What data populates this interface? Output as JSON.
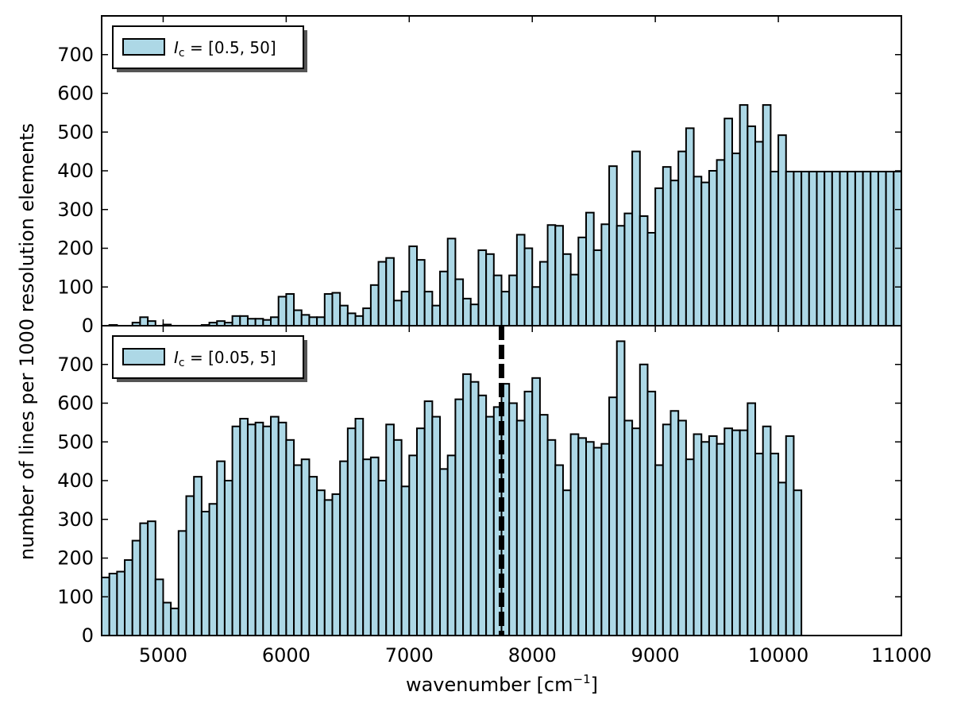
{
  "figure": {
    "xlabel": "wavenumber [cm",
    "xlabel_sup": "−1",
    "xlabel_tail": "]",
    "ylabel": "number of lines per 1000 resolution elements"
  },
  "colors": {
    "bar_fill": "#add8e6",
    "bar_edge": "#000000",
    "marker": "#000000"
  },
  "marker_line": {
    "x": 7750,
    "style": "dashed",
    "panel": "bottom"
  },
  "chart_data": [
    {
      "type": "bar",
      "panel": "top",
      "legend": {
        "symbol": "I",
        "subscript": "c",
        "text": " = [0.5, 50]",
        "placement": "upper-left"
      },
      "series": [
        {
          "name": "I_c = [0.5, 50]"
        }
      ],
      "bin_start": 4500,
      "bin_width": 62.5,
      "xlim": [
        4500,
        11000
      ],
      "ylim": [
        0,
        800
      ],
      "xticks": [
        5000,
        6000,
        7000,
        8000,
        9000,
        10000,
        11000
      ],
      "yticks": [
        0,
        100,
        200,
        300,
        400,
        500,
        600,
        700
      ],
      "values": [
        0,
        2,
        0,
        0,
        8,
        22,
        12,
        0,
        3,
        0,
        0,
        0,
        0,
        2,
        8,
        12,
        8,
        25,
        25,
        18,
        18,
        15,
        22,
        75,
        82,
        40,
        28,
        22,
        22,
        82,
        85,
        52,
        32,
        25,
        45,
        105,
        165,
        175,
        65,
        88,
        205,
        170,
        88,
        52,
        140,
        225,
        120,
        70,
        55,
        195,
        185,
        130,
        88,
        130,
        235,
        200,
        100,
        165,
        260,
        258,
        185,
        132,
        228,
        292,
        195,
        262,
        412,
        258,
        290,
        450,
        283,
        240,
        355,
        410,
        375,
        450,
        510,
        385,
        370,
        400,
        428,
        535,
        445,
        570,
        515,
        475,
        570,
        398,
        492,
        398,
        398,
        398,
        398,
        398,
        398,
        398,
        398,
        398,
        398,
        398,
        398,
        398,
        398,
        398
      ]
    },
    {
      "type": "bar",
      "panel": "bottom",
      "legend": {
        "symbol": "I",
        "subscript": "c",
        "text": " = [0.05, 5]",
        "placement": "upper-left"
      },
      "series": [
        {
          "name": "I_c = [0.05, 5]"
        }
      ],
      "bin_start": 4500,
      "bin_width": 62.5,
      "xlim": [
        4500,
        11000
      ],
      "ylim": [
        0,
        800
      ],
      "xticks": [
        5000,
        6000,
        7000,
        8000,
        9000,
        10000,
        11000
      ],
      "yticks": [
        0,
        100,
        200,
        300,
        400,
        500,
        600,
        700
      ],
      "values": [
        150,
        160,
        165,
        195,
        245,
        290,
        295,
        145,
        85,
        70,
        270,
        360,
        410,
        320,
        340,
        450,
        400,
        540,
        560,
        545,
        550,
        540,
        565,
        550,
        505,
        440,
        455,
        410,
        375,
        350,
        365,
        450,
        535,
        560,
        455,
        460,
        400,
        545,
        505,
        385,
        465,
        535,
        605,
        565,
        430,
        465,
        610,
        675,
        655,
        620,
        565,
        590,
        650,
        600,
        555,
        630,
        665,
        570,
        505,
        440,
        375,
        520,
        510,
        500,
        485,
        495,
        615,
        760,
        555,
        535,
        700,
        630,
        440,
        545,
        580,
        555,
        455,
        520,
        500,
        515,
        495,
        535,
        530,
        530,
        600,
        470,
        540,
        470,
        395,
        515,
        375
      ]
    }
  ]
}
